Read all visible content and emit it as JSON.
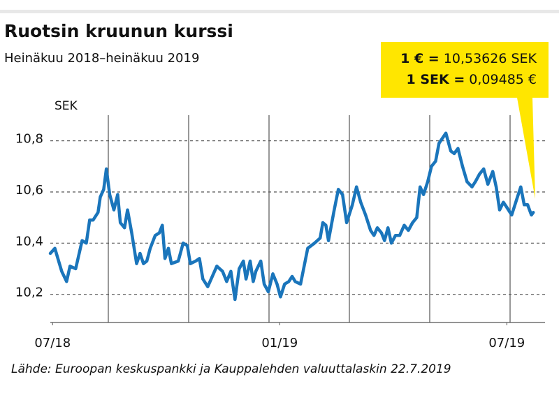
{
  "chart_data": {
    "type": "line",
    "title": "Ruotsin kruunun kurssi",
    "subtitle": "Heinäkuu 2018–heinäkuu 2019",
    "y_label": "SEK",
    "source": "Lähde: Euroopan keskuspankki ja Kauppalehden valuuttalaskin 22.7.2019",
    "callout": [
      {
        "label": "1 € =",
        "text": "10,53626 SEK"
      },
      {
        "label": "1 SEK =",
        "text": "0,09485 €"
      }
    ],
    "x": [
      -0.06,
      0.06,
      0.24,
      0.37,
      0.46,
      0.61,
      0.78,
      0.89,
      0.98,
      1.07,
      1.2,
      1.26,
      1.35,
      1.42,
      1.51,
      1.62,
      1.72,
      1.79,
      1.9,
      1.98,
      2.09,
      2.22,
      2.31,
      2.4,
      2.49,
      2.58,
      2.71,
      2.82,
      2.9,
      2.97,
      3.06,
      3.14,
      3.32,
      3.45,
      3.56,
      3.64,
      3.78,
      3.88,
      3.97,
      4.1,
      4.19,
      4.34,
      4.49,
      4.6,
      4.71,
      4.82,
      4.93,
      5.04,
      5.11,
      5.22,
      5.3,
      5.37,
      5.5,
      5.59,
      5.7,
      5.82,
      5.93,
      6.02,
      6.13,
      6.24,
      6.33,
      6.41,
      6.55,
      6.74,
      6.92,
      7.07,
      7.14,
      7.22,
      7.29,
      7.44,
      7.55,
      7.66,
      7.77,
      7.92,
      8.03,
      8.14,
      8.27,
      8.4,
      8.49,
      8.58,
      8.69,
      8.77,
      8.86,
      8.95,
      9.06,
      9.17,
      9.29,
      9.4,
      9.51,
      9.62,
      9.71,
      9.8,
      9.91,
      10.01,
      10.12,
      10.21,
      10.39,
      10.52,
      10.61,
      10.71,
      10.83,
      10.95,
      11.08,
      11.17,
      11.28,
      11.39,
      11.5,
      11.63,
      11.72,
      11.81,
      11.91,
      12,
      12.13,
      12.28,
      12.37,
      12.46,
      12.55,
      12.65,
      12.7
    ],
    "values": [
      10.36,
      10.38,
      10.29,
      10.25,
      10.31,
      10.3,
      10.41,
      10.4,
      10.49,
      10.49,
      10.52,
      10.58,
      10.61,
      10.69,
      10.59,
      10.53,
      10.59,
      10.48,
      10.46,
      10.53,
      10.44,
      10.32,
      10.36,
      10.32,
      10.33,
      10.38,
      10.43,
      10.44,
      10.47,
      10.34,
      10.38,
      10.32,
      10.33,
      10.4,
      10.39,
      10.32,
      10.33,
      10.34,
      10.26,
      10.23,
      10.26,
      10.31,
      10.29,
      10.25,
      10.29,
      10.18,
      10.3,
      10.33,
      10.26,
      10.33,
      10.25,
      10.29,
      10.33,
      10.24,
      10.21,
      10.28,
      10.24,
      10.19,
      10.24,
      10.25,
      10.27,
      10.25,
      10.24,
      10.38,
      10.4,
      10.42,
      10.48,
      10.47,
      10.41,
      10.53,
      10.61,
      10.59,
      10.48,
      10.55,
      10.62,
      10.56,
      10.51,
      10.45,
      10.43,
      10.46,
      10.44,
      10.41,
      10.46,
      10.4,
      10.43,
      10.43,
      10.47,
      10.45,
      10.48,
      10.5,
      10.62,
      10.59,
      10.64,
      10.7,
      10.72,
      10.79,
      10.83,
      10.76,
      10.75,
      10.77,
      10.7,
      10.64,
      10.62,
      10.64,
      10.67,
      10.69,
      10.63,
      10.68,
      10.62,
      10.53,
      10.56,
      10.54,
      10.51,
      10.58,
      10.62,
      10.55,
      10.55,
      10.51,
      10.52
    ],
    "color": "#1a75bb",
    "xlim": [
      -0.06,
      13.01
    ],
    "xticks": [
      {
        "value": 0,
        "label": "07/18"
      },
      {
        "value": 6,
        "label": "01/19"
      },
      {
        "value": 12,
        "label": "07/19"
      }
    ],
    "ylim": [
      10.09,
      10.9
    ],
    "yticks": [
      {
        "value": 10.2,
        "label": "10,2"
      },
      {
        "value": 10.4,
        "label": "10,4"
      },
      {
        "value": 10.6,
        "label": "10,6"
      },
      {
        "value": 10.8,
        "label": "10,8"
      }
    ],
    "grid": true
  }
}
